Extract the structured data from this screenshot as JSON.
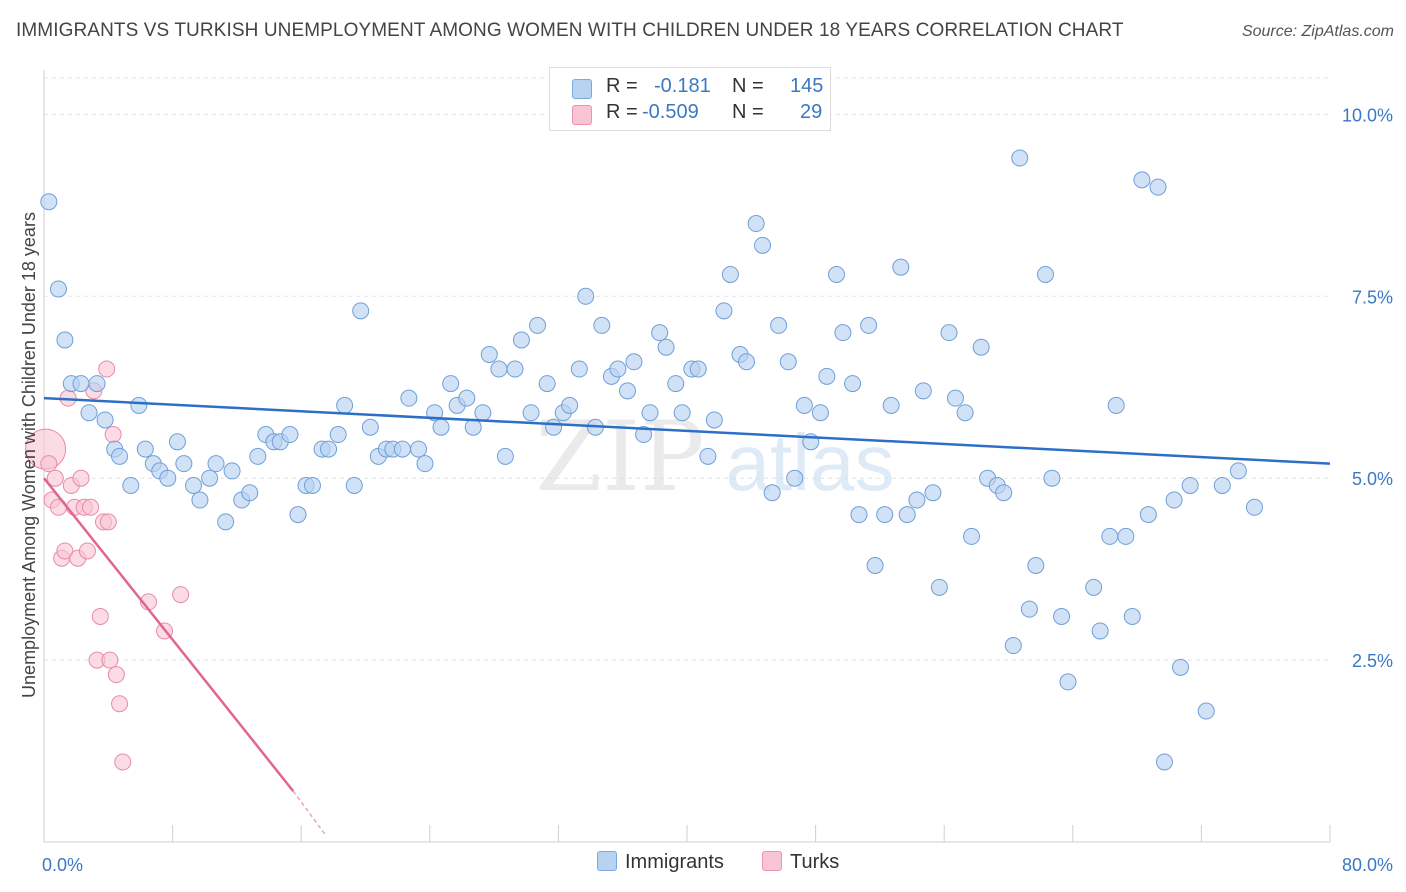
{
  "title": "IMMIGRANTS VS TURKISH UNEMPLOYMENT AMONG WOMEN WITH CHILDREN UNDER 18 YEARS CORRELATION CHART",
  "source": "Source: ZipAtlas.com",
  "watermark": {
    "zip": "ZIP",
    "atlas": "atlas"
  },
  "legend": {
    "rows": [
      {
        "r_label": "R =",
        "r_value": "-0.181",
        "n_label": "N =",
        "n_value": "145",
        "fill": "#b8d3f1",
        "stroke": "#7aa9dd"
      },
      {
        "r_label": "R =",
        "r_value": "-0.509",
        "n_label": "N =",
        "n_value": "29",
        "fill": "#f9c4d4",
        "stroke": "#ec93ae"
      }
    ],
    "bottom": [
      {
        "label": "Immigrants",
        "fill": "#b8d3f1",
        "stroke": "#7aa9dd"
      },
      {
        "label": "Turks",
        "fill": "#f9c4d4",
        "stroke": "#ec93ae"
      }
    ]
  },
  "colors": {
    "immigrants_fill": "#b8d3f1",
    "immigrants_stroke": "#6f9fd8",
    "immigrants_line": "#2d6fc6",
    "turks_fill": "#f9c4d4",
    "turks_stroke": "#e98aa8",
    "turks_line": "#e06690",
    "tick_label": "#3b78c4",
    "grid": "#e3e3e3"
  },
  "chart_data": {
    "type": "scatter",
    "title": "IMMIGRANTS VS TURKISH UNEMPLOYMENT AMONG WOMEN WITH CHILDREN UNDER 18 YEARS CORRELATION CHART",
    "xlabel": "",
    "ylabel": "Unemployment Among Women with Children Under 18 years",
    "xlim": [
      0,
      80
    ],
    "ylim": [
      0,
      10.5
    ],
    "x_tick_labels": [
      {
        "value": 0,
        "label": "0.0%"
      },
      {
        "value": 80,
        "label": "80.0%"
      }
    ],
    "y_tick_labels": [
      {
        "value": 2.5,
        "label": "2.5%"
      },
      {
        "value": 5.0,
        "label": "5.0%"
      },
      {
        "value": 7.5,
        "label": "7.5%"
      },
      {
        "value": 10.0,
        "label": "10.0%"
      }
    ],
    "grid": true,
    "legend_position": "top-center",
    "series": [
      {
        "name": "Immigrants",
        "r": -0.181,
        "n": 145,
        "trend": {
          "x": [
            0,
            80
          ],
          "y": [
            6.1,
            5.2
          ]
        },
        "points": [
          [
            0.3,
            8.8
          ],
          [
            0.9,
            7.6
          ],
          [
            1.3,
            6.9
          ],
          [
            1.7,
            6.3
          ],
          [
            2.3,
            6.3
          ],
          [
            2.8,
            5.9
          ],
          [
            3.3,
            6.3
          ],
          [
            3.8,
            5.8
          ],
          [
            4.4,
            5.4
          ],
          [
            4.7,
            5.3
          ],
          [
            5.4,
            4.9
          ],
          [
            5.9,
            6.0
          ],
          [
            6.3,
            5.4
          ],
          [
            6.8,
            5.2
          ],
          [
            7.2,
            5.1
          ],
          [
            7.7,
            5.0
          ],
          [
            8.3,
            5.5
          ],
          [
            8.7,
            5.2
          ],
          [
            9.3,
            4.9
          ],
          [
            9.7,
            4.7
          ],
          [
            10.3,
            5.0
          ],
          [
            10.7,
            5.2
          ],
          [
            11.3,
            4.4
          ],
          [
            11.7,
            5.1
          ],
          [
            12.3,
            4.7
          ],
          [
            12.8,
            4.8
          ],
          [
            13.3,
            5.3
          ],
          [
            13.8,
            5.6
          ],
          [
            14.3,
            5.5
          ],
          [
            14.7,
            5.5
          ],
          [
            15.3,
            5.6
          ],
          [
            15.8,
            4.5
          ],
          [
            16.3,
            4.9
          ],
          [
            16.7,
            4.9
          ],
          [
            17.3,
            5.4
          ],
          [
            17.7,
            5.4
          ],
          [
            18.3,
            5.6
          ],
          [
            18.7,
            6.0
          ],
          [
            19.3,
            4.9
          ],
          [
            19.7,
            7.3
          ],
          [
            20.3,
            5.7
          ],
          [
            20.8,
            5.3
          ],
          [
            21.3,
            5.4
          ],
          [
            21.7,
            5.4
          ],
          [
            22.3,
            5.4
          ],
          [
            22.7,
            6.1
          ],
          [
            23.3,
            5.4
          ],
          [
            23.7,
            5.2
          ],
          [
            24.3,
            5.9
          ],
          [
            24.7,
            5.7
          ],
          [
            25.3,
            6.3
          ],
          [
            25.7,
            6.0
          ],
          [
            26.3,
            6.1
          ],
          [
            26.7,
            5.7
          ],
          [
            27.3,
            5.9
          ],
          [
            27.7,
            6.7
          ],
          [
            28.3,
            6.5
          ],
          [
            28.7,
            5.3
          ],
          [
            29.3,
            6.5
          ],
          [
            29.7,
            6.9
          ],
          [
            30.3,
            5.9
          ],
          [
            30.7,
            7.1
          ],
          [
            31.3,
            6.3
          ],
          [
            31.7,
            5.7
          ],
          [
            32.3,
            5.9
          ],
          [
            32.7,
            6.0
          ],
          [
            33.3,
            6.5
          ],
          [
            33.7,
            7.5
          ],
          [
            34.3,
            5.7
          ],
          [
            34.7,
            7.1
          ],
          [
            35.3,
            6.4
          ],
          [
            35.7,
            6.5
          ],
          [
            36.3,
            6.2
          ],
          [
            36.7,
            6.6
          ],
          [
            37.3,
            5.6
          ],
          [
            37.7,
            5.9
          ],
          [
            38.3,
            7.0
          ],
          [
            38.7,
            6.8
          ],
          [
            39.3,
            6.3
          ],
          [
            39.7,
            5.9
          ],
          [
            40.3,
            6.5
          ],
          [
            40.7,
            6.5
          ],
          [
            41.3,
            5.3
          ],
          [
            41.7,
            5.8
          ],
          [
            42.3,
            7.3
          ],
          [
            42.7,
            7.8
          ],
          [
            43.3,
            6.7
          ],
          [
            43.7,
            6.6
          ],
          [
            44.3,
            8.5
          ],
          [
            44.7,
            8.2
          ],
          [
            45.3,
            4.8
          ],
          [
            45.7,
            7.1
          ],
          [
            46.3,
            6.6
          ],
          [
            46.7,
            5.0
          ],
          [
            47.3,
            6.0
          ],
          [
            47.7,
            5.5
          ],
          [
            48.3,
            5.9
          ],
          [
            48.7,
            6.4
          ],
          [
            49.3,
            7.8
          ],
          [
            49.7,
            7.0
          ],
          [
            50.3,
            6.3
          ],
          [
            50.7,
            4.5
          ],
          [
            51.3,
            7.1
          ],
          [
            51.7,
            3.8
          ],
          [
            52.3,
            4.5
          ],
          [
            52.7,
            6.0
          ],
          [
            53.3,
            7.9
          ],
          [
            53.7,
            4.5
          ],
          [
            54.3,
            4.7
          ],
          [
            54.7,
            6.2
          ],
          [
            55.3,
            4.8
          ],
          [
            55.7,
            3.5
          ],
          [
            56.3,
            7.0
          ],
          [
            56.7,
            6.1
          ],
          [
            57.3,
            5.9
          ],
          [
            57.7,
            4.2
          ],
          [
            58.3,
            6.8
          ],
          [
            58.7,
            5.0
          ],
          [
            59.3,
            4.9
          ],
          [
            59.7,
            4.8
          ],
          [
            60.3,
            2.7
          ],
          [
            60.7,
            9.4
          ],
          [
            61.3,
            3.2
          ],
          [
            61.7,
            3.8
          ],
          [
            62.3,
            7.8
          ],
          [
            62.7,
            5.0
          ],
          [
            63.3,
            3.1
          ],
          [
            63.7,
            2.2
          ],
          [
            65.3,
            3.5
          ],
          [
            65.7,
            2.9
          ],
          [
            66.3,
            4.2
          ],
          [
            66.7,
            6.0
          ],
          [
            67.3,
            4.2
          ],
          [
            67.7,
            3.1
          ],
          [
            68.3,
            9.1
          ],
          [
            68.7,
            4.5
          ],
          [
            69.3,
            9.0
          ],
          [
            69.7,
            1.1
          ],
          [
            70.3,
            4.7
          ],
          [
            70.7,
            2.4
          ],
          [
            71.3,
            4.9
          ],
          [
            72.3,
            1.8
          ],
          [
            73.3,
            4.9
          ],
          [
            74.3,
            5.1
          ],
          [
            75.3,
            4.6
          ]
        ]
      },
      {
        "name": "Turks",
        "r": -0.509,
        "n": 29,
        "trend": {
          "x": [
            0,
            15.5
          ],
          "y": [
            5.0,
            0.7
          ],
          "dashed_extension": {
            "x": [
              15.5,
              17.5
            ],
            "y": [
              0.7,
              0.1
            ]
          }
        },
        "points": [
          [
            0.1,
            5.4
          ],
          [
            0.3,
            5.2
          ],
          [
            0.5,
            4.7
          ],
          [
            0.7,
            5.0
          ],
          [
            0.9,
            4.6
          ],
          [
            1.1,
            3.9
          ],
          [
            1.3,
            4.0
          ],
          [
            1.5,
            6.1
          ],
          [
            1.7,
            4.9
          ],
          [
            1.9,
            4.6
          ],
          [
            2.1,
            3.9
          ],
          [
            2.3,
            5.0
          ],
          [
            2.5,
            4.6
          ],
          [
            2.7,
            4.0
          ],
          [
            2.9,
            4.6
          ],
          [
            3.1,
            6.2
          ],
          [
            3.3,
            2.5
          ],
          [
            3.5,
            3.1
          ],
          [
            3.7,
            4.4
          ],
          [
            3.9,
            6.5
          ],
          [
            4.1,
            2.5
          ],
          [
            4.3,
            5.6
          ],
          [
            4.5,
            2.3
          ],
          [
            4.7,
            1.9
          ],
          [
            4.9,
            1.1
          ],
          [
            6.5,
            3.3
          ],
          [
            7.5,
            2.9
          ],
          [
            8.5,
            3.4
          ],
          [
            4.0,
            4.4
          ]
        ]
      }
    ]
  }
}
